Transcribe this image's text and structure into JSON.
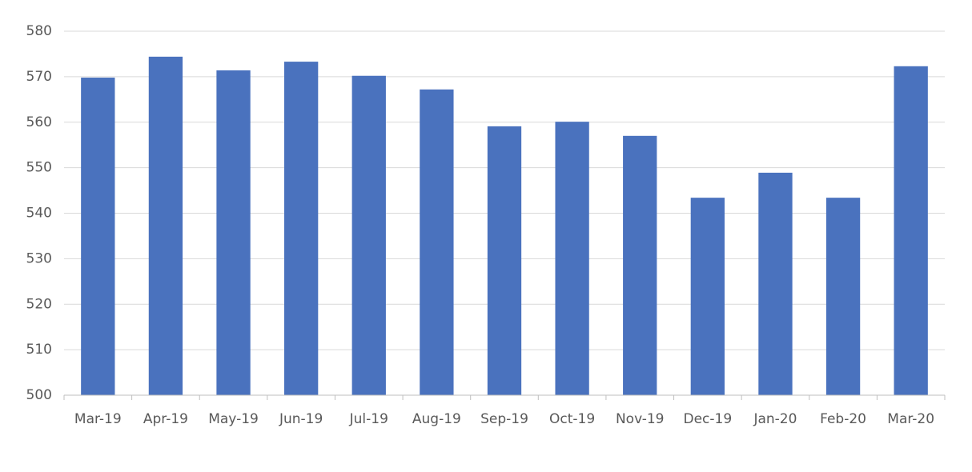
{
  "chart_data": {
    "type": "bar",
    "categories": [
      "Mar-19",
      "Apr-19",
      "May-19",
      "Jun-19",
      "Jul-19",
      "Aug-19",
      "Sep-19",
      "Oct-19",
      "Nov-19",
      "Dec-19",
      "Jan-20",
      "Feb-20",
      "Mar-20"
    ],
    "values": [
      569.8,
      574.4,
      571.4,
      573.3,
      570.2,
      567.2,
      559.1,
      560.1,
      557.0,
      543.4,
      548.9,
      543.4,
      572.3
    ],
    "color": "#4a72be",
    "ylim": [
      500,
      580
    ],
    "yticks": [
      500,
      510,
      520,
      530,
      540,
      550,
      560,
      570,
      580
    ],
    "grid": true
  }
}
